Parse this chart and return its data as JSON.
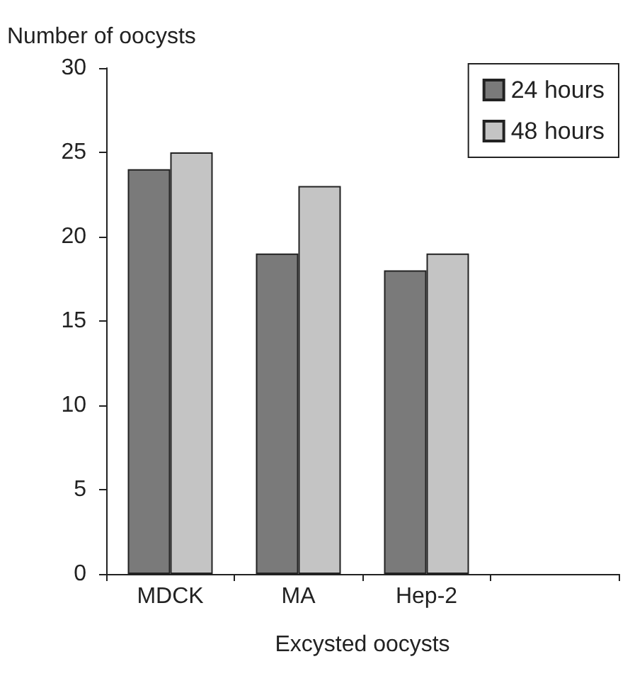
{
  "chart_data": {
    "type": "bar",
    "xlabel": "Excysted oocysts",
    "ylabel": "Number of oocysts",
    "categories": [
      "MDCK",
      "MA",
      "Hep-2",
      null
    ],
    "series": [
      {
        "name": "24 hours",
        "color": "#7a7a7a",
        "values": [
          24,
          19,
          18,
          null
        ]
      },
      {
        "name": "48 hours",
        "color": "#c4c4c4",
        "values": [
          25,
          23,
          19,
          null
        ]
      }
    ],
    "ylim": [
      0,
      30
    ],
    "yticks": [
      0,
      5,
      10,
      15,
      20,
      25,
      30
    ],
    "legend": "top right"
  }
}
